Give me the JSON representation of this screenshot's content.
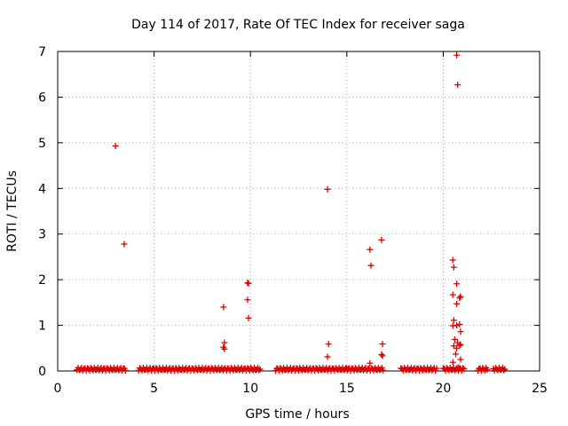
{
  "chart_data": {
    "type": "scatter",
    "title": "Day 114 of 2017, Rate Of TEC Index for receiver saga",
    "xlabel": "GPS time / hours",
    "ylabel": "ROTI / TECUs",
    "xlim": [
      0,
      25
    ],
    "ylim": [
      0,
      7
    ],
    "xticks": [
      0,
      5,
      10,
      15,
      20,
      25
    ],
    "yticks": [
      0,
      1,
      2,
      3,
      4,
      5,
      6,
      7
    ],
    "grid": true,
    "marker": "+",
    "color": "#dd0000",
    "baseline_segments": [
      [
        1.0,
        3.55
      ],
      [
        4.2,
        10.5
      ],
      [
        11.3,
        16.9
      ],
      [
        17.8,
        19.7
      ],
      [
        20.0,
        21.1
      ],
      [
        21.8,
        22.3
      ],
      [
        22.6,
        23.2
      ]
    ],
    "points": [
      [
        3.0,
        4.93
      ],
      [
        3.45,
        2.78
      ],
      [
        8.6,
        1.4
      ],
      [
        8.65,
        0.62
      ],
      [
        8.6,
        0.52
      ],
      [
        8.65,
        0.48
      ],
      [
        9.85,
        1.93
      ],
      [
        9.9,
        1.92
      ],
      [
        9.85,
        1.56
      ],
      [
        9.9,
        1.16
      ],
      [
        14.0,
        3.98
      ],
      [
        14.05,
        0.59
      ],
      [
        14.0,
        0.31
      ],
      [
        16.2,
        2.66
      ],
      [
        16.25,
        2.31
      ],
      [
        16.2,
        0.17
      ],
      [
        16.8,
        2.87
      ],
      [
        16.85,
        0.59
      ],
      [
        16.8,
        0.36
      ],
      [
        16.85,
        0.33
      ],
      [
        20.7,
        6.92
      ],
      [
        20.75,
        6.27
      ],
      [
        20.5,
        2.43
      ],
      [
        20.55,
        2.27
      ],
      [
        20.7,
        1.91
      ],
      [
        20.9,
        1.63
      ],
      [
        20.85,
        1.6
      ],
      [
        20.5,
        1.67
      ],
      [
        20.7,
        1.47
      ],
      [
        20.55,
        1.11
      ],
      [
        20.5,
        0.99
      ],
      [
        20.7,
        1.0
      ],
      [
        20.85,
        1.02
      ],
      [
        20.9,
        0.86
      ],
      [
        20.6,
        0.69
      ],
      [
        20.75,
        0.62
      ],
      [
        20.9,
        0.58
      ],
      [
        20.85,
        0.56
      ],
      [
        20.55,
        0.55
      ],
      [
        20.7,
        0.5
      ],
      [
        20.65,
        0.37
      ],
      [
        20.9,
        0.25
      ],
      [
        20.5,
        0.19
      ],
      [
        20.8,
        0.08
      ]
    ]
  }
}
